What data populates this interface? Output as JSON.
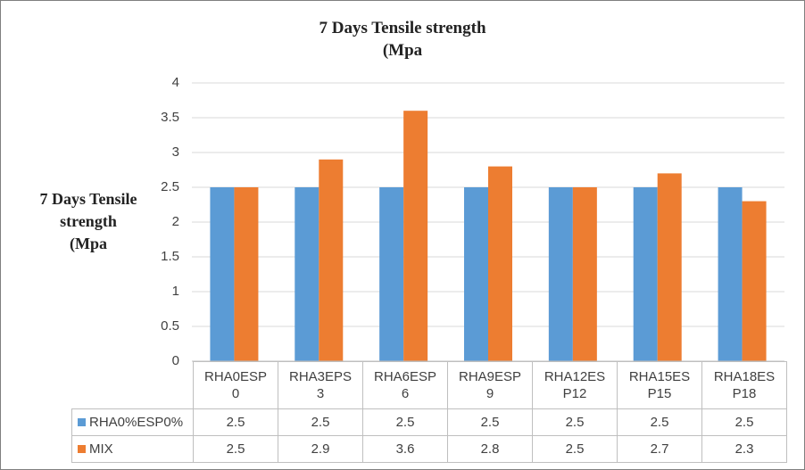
{
  "chart_data": {
    "type": "bar",
    "title": "7 Days Tensile strength (Mpa",
    "title_lines": [
      "7 Days Tensile strength",
      "(Mpa"
    ],
    "ylabel": "7 Days Tensile strength (Mpa",
    "ylabel_lines": [
      "7 Days Tensile",
      "strength",
      "(Mpa"
    ],
    "ylim": [
      0,
      4
    ],
    "yticks": [
      "0",
      "0.5",
      "1",
      "1.5",
      "2",
      "2.5",
      "3",
      "3.5",
      "4"
    ],
    "grid": true,
    "legend": "data-table",
    "categories": [
      "RHA0ESP0",
      "RHA3EPS3",
      "RHA6ESP6",
      "RHA9ESP9",
      "RHA12ESP12",
      "RHA15ESP15",
      "RHA18ESP18"
    ],
    "category_lines": [
      [
        "RHA0ESP",
        "0"
      ],
      [
        "RHA3EPS",
        "3"
      ],
      [
        "RHA6ESP",
        "6"
      ],
      [
        "RHA9ESP",
        "9"
      ],
      [
        "RHA12ES",
        "P12"
      ],
      [
        "RHA15ES",
        "P15"
      ],
      [
        "RHA18ES",
        "P18"
      ]
    ],
    "series": [
      {
        "name": "RHA0%ESP0%",
        "color": "#5b9bd5",
        "values": [
          2.5,
          2.5,
          2.5,
          2.5,
          2.5,
          2.5,
          2.5
        ],
        "labels": [
          "2.5",
          "2.5",
          "2.5",
          "2.5",
          "2.5",
          "2.5",
          "2.5"
        ]
      },
      {
        "name": "MIX",
        "color": "#ed7d31",
        "values": [
          2.5,
          2.9,
          3.6,
          2.8,
          2.5,
          2.7,
          2.3
        ],
        "labels": [
          "2.5",
          "2.9",
          "3.6",
          "2.8",
          "2.5",
          "2.7",
          "2.3"
        ]
      }
    ]
  }
}
